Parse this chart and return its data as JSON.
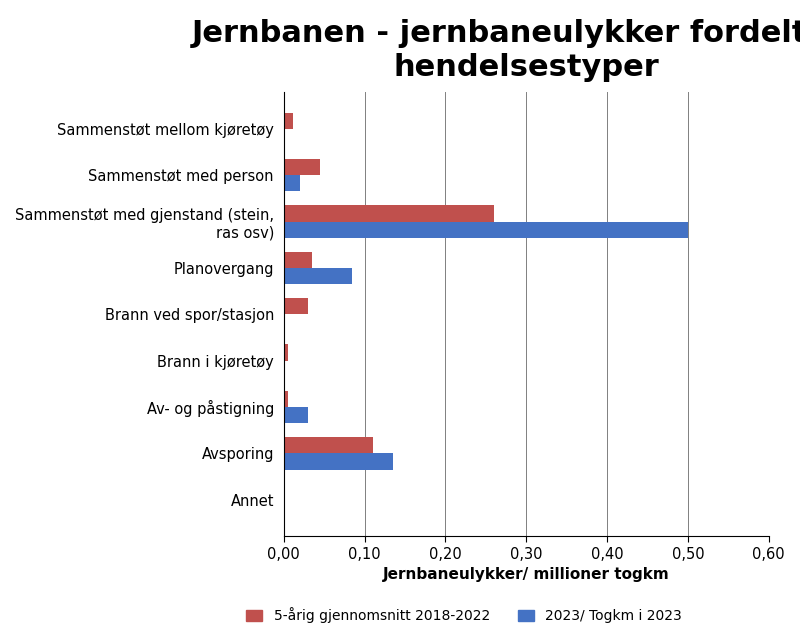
{
  "title": "Jernbanen - jernbaneulykker fordelt på\nhendelsestyper",
  "categories": [
    "Annet",
    "Avsporing",
    "Av- og påstigning",
    "Brann i kjøretøy",
    "Brann ved spor/stasjon",
    "Planovergang",
    "Sammenstøt med gjenstand (stein,\nras osv)",
    "Sammenstøt med person",
    "Sammenstøt mellom kjøretøy"
  ],
  "values_red": [
    0.0,
    0.11,
    0.005,
    0.005,
    0.03,
    0.035,
    0.26,
    0.045,
    0.012
  ],
  "values_blue": [
    0.0,
    0.135,
    0.03,
    0.0,
    0.0,
    0.085,
    0.5,
    0.02,
    0.0
  ],
  "color_red": "#c0504d",
  "color_blue": "#4472c4",
  "xlabel": "Jernbaneulykker/ millioner togkm",
  "xlim": [
    0,
    0.6
  ],
  "xticks": [
    0.0,
    0.1,
    0.2,
    0.3,
    0.4,
    0.5,
    0.6
  ],
  "xticklabels": [
    "0,00",
    "0,10",
    "0,20",
    "0,30",
    "0,40",
    "0,50",
    "0,60"
  ],
  "legend_red": "5-årig gjennomsnitt 2018-2022",
  "legend_blue": "2023/ Togkm i 2023",
  "background_color": "#ffffff",
  "title_fontsize": 22,
  "label_fontsize": 11,
  "tick_fontsize": 10.5,
  "ylabel_fontsize": 10.5
}
